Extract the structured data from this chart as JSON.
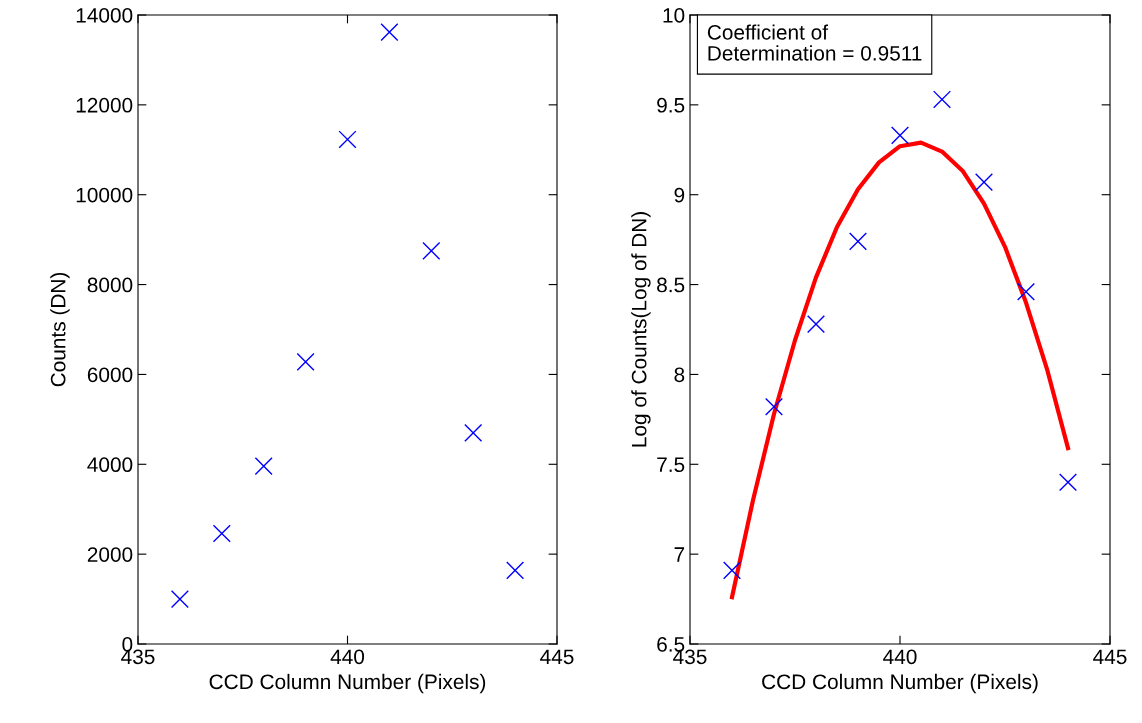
{
  "chart_data": [
    {
      "type": "scatter",
      "xlabel": "CCD Column Number (Pixels)",
      "ylabel": "Counts (DN)",
      "x": [
        436,
        437,
        438,
        439,
        440,
        441,
        442,
        443,
        444
      ],
      "series": [
        {
          "color": "#0000ff",
          "values": [
            1000,
            2460,
            3960,
            6280,
            11230,
            13620,
            8750,
            4700,
            1640
          ]
        }
      ],
      "xlim": [
        435,
        445
      ],
      "xticks": [
        435,
        440,
        445
      ],
      "ylim": [
        0,
        14000
      ],
      "yticks": [
        0,
        2000,
        4000,
        6000,
        8000,
        10000,
        12000,
        14000
      ],
      "marker": "cross",
      "grid": false,
      "legend": false
    },
    {
      "type": "scatter",
      "xlabel": "CCD Column Number (Pixels)",
      "ylabel": "Log of Counts(Log of DN)",
      "x": [
        436,
        437,
        438,
        439,
        440,
        441,
        442,
        443,
        444
      ],
      "series": [
        {
          "color": "#0000ff",
          "values": [
            6.91,
            7.82,
            8.28,
            8.74,
            9.33,
            9.53,
            9.07,
            8.46,
            7.4
          ]
        },
        {
          "type": "line",
          "color": "#ff0000",
          "marker": "none",
          "x": [
            436,
            436.5,
            437,
            437.5,
            438,
            438.5,
            439,
            439.5,
            440,
            440.5,
            441,
            441.5,
            442,
            442.5,
            443,
            443.5,
            444
          ],
          "values": [
            6.76,
            7.3,
            7.78,
            8.19,
            8.54,
            8.82,
            9.03,
            9.18,
            9.27,
            9.29,
            9.24,
            9.13,
            8.95,
            8.71,
            8.4,
            8.03,
            7.59
          ]
        }
      ],
      "annotations": [
        "Coefficient of\nDetermination = 0.9511"
      ],
      "xlim": [
        435,
        445
      ],
      "xticks": [
        435,
        440,
        445
      ],
      "ylim": [
        6.5,
        10
      ],
      "yticks": [
        6.5,
        7,
        7.5,
        8,
        8.5,
        9,
        9.5,
        10
      ],
      "marker": "cross",
      "grid": false,
      "legend": false
    }
  ]
}
